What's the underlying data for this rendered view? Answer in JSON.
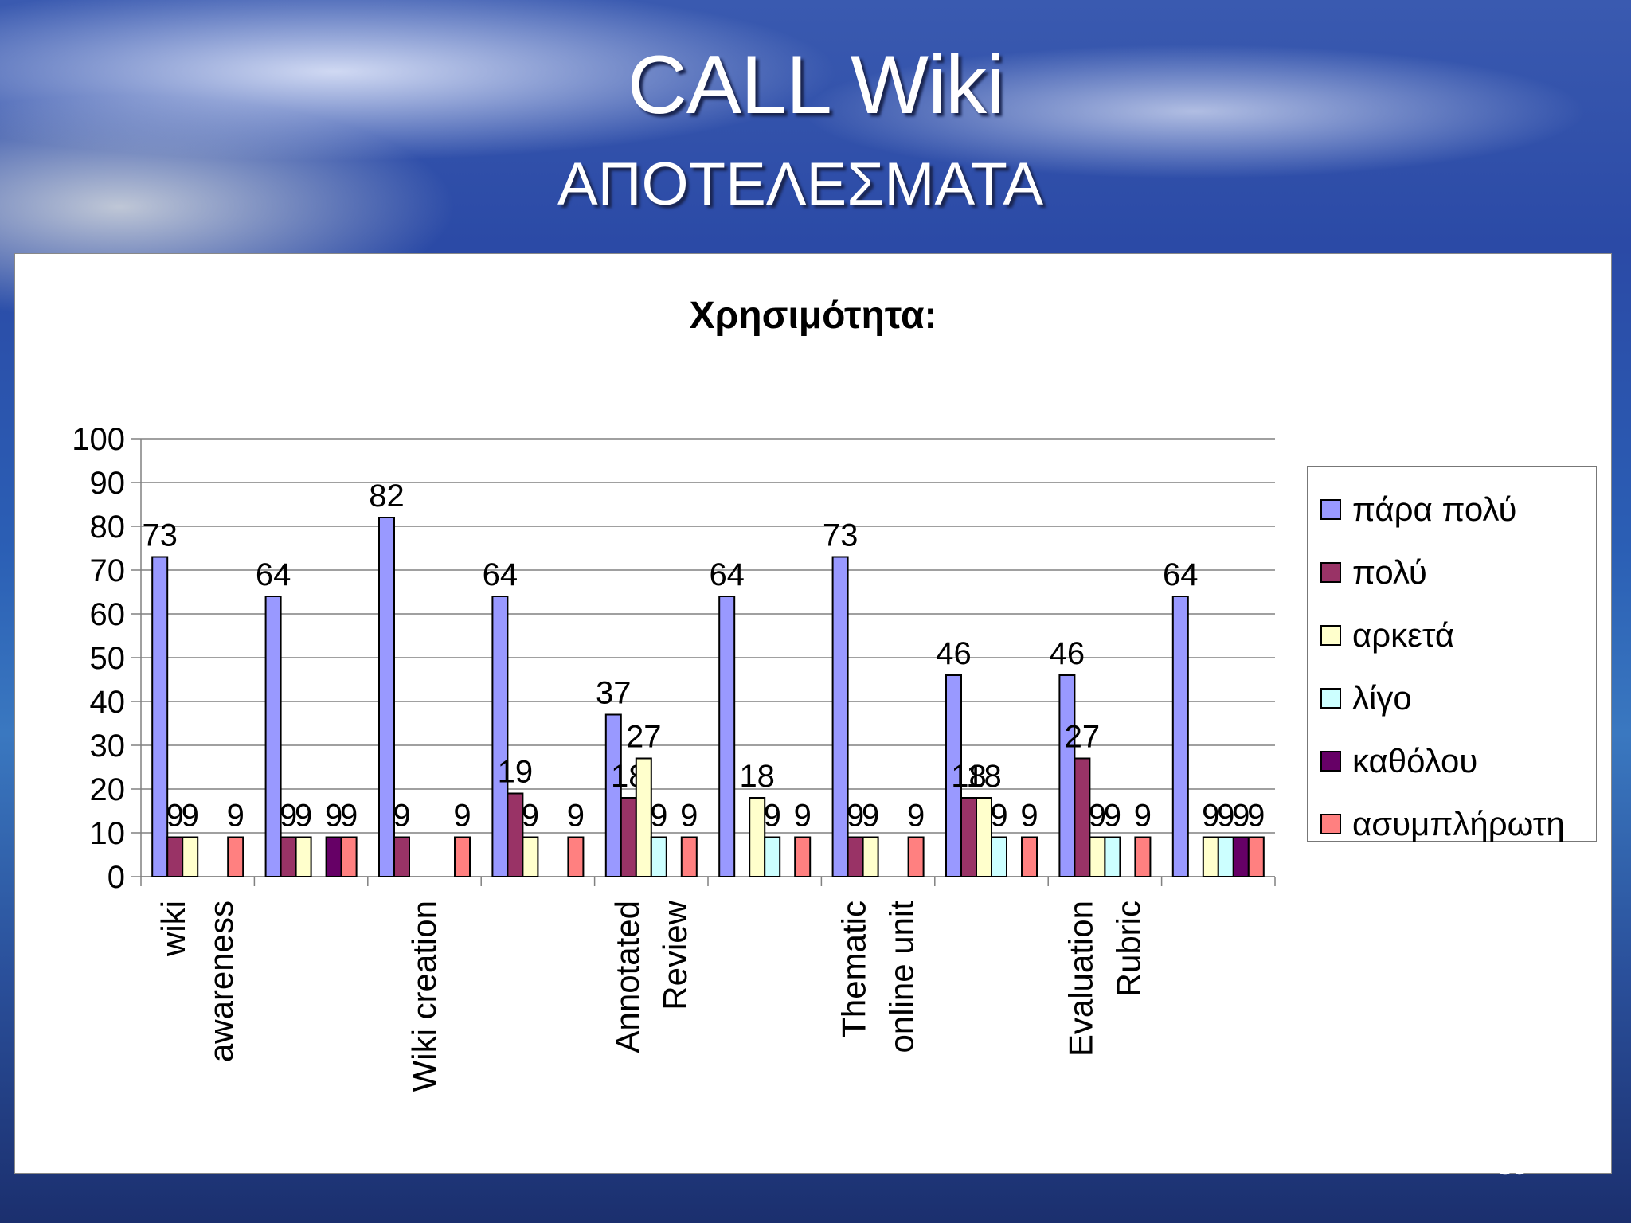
{
  "slide": {
    "title": "CALL Wiki",
    "subtitle": "ΑΠΟΤΕΛΕΣΜΑΤΑ",
    "page_number": "30"
  },
  "chart_data": {
    "type": "bar",
    "title": "Χρησιμότητα:",
    "xlabel": "",
    "ylabel": "",
    "ylim": [
      0,
      100
    ],
    "yticks": [
      0,
      10,
      20,
      30,
      40,
      50,
      60,
      70,
      80,
      90,
      100
    ],
    "grid": true,
    "legend_position": "right",
    "categories": [
      "wiki awareness",
      "",
      "Wiki creation",
      "",
      "Annotated Review",
      "",
      "Thematic online unit",
      "",
      "Evaluation Rubric",
      ""
    ],
    "category_label_lines": [
      [
        "wiki",
        "awareness"
      ],
      [],
      [
        "Wiki creation"
      ],
      [],
      [
        "Annotated",
        "Review"
      ],
      [],
      [
        "Thematic",
        "online unit"
      ],
      [],
      [
        "Evaluation",
        "Rubric"
      ],
      []
    ],
    "series": [
      {
        "name": "πάρα πολύ",
        "color": "#9999ff",
        "values": [
          73,
          64,
          82,
          64,
          37,
          64,
          73,
          46,
          46,
          64
        ]
      },
      {
        "name": "πολύ",
        "color": "#993366",
        "values": [
          9,
          9,
          9,
          19,
          18,
          0,
          9,
          18,
          27,
          0
        ]
      },
      {
        "name": "αρκετά",
        "color": "#ffffcc",
        "values": [
          9,
          9,
          0,
          9,
          27,
          18,
          9,
          18,
          9,
          9
        ]
      },
      {
        "name": "λίγο",
        "color": "#ccffff",
        "values": [
          0,
          0,
          0,
          0,
          9,
          9,
          0,
          9,
          9,
          9
        ]
      },
      {
        "name": "καθόλου",
        "color": "#660066",
        "values": [
          0,
          9,
          0,
          0,
          0,
          0,
          0,
          0,
          0,
          9
        ]
      },
      {
        "name": "ασυμπλήρωτη",
        "color": "#ff8080",
        "values": [
          9,
          9,
          9,
          9,
          9,
          9,
          9,
          9,
          9,
          9
        ]
      }
    ]
  }
}
